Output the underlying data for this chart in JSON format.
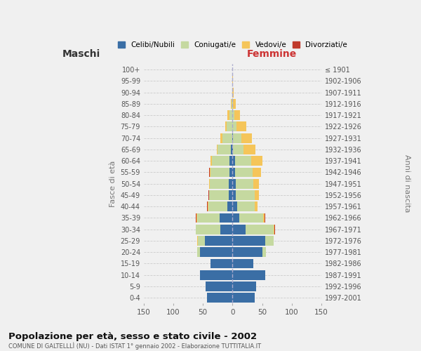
{
  "age_groups": [
    "0-4",
    "5-9",
    "10-14",
    "15-19",
    "20-24",
    "25-29",
    "30-34",
    "35-39",
    "40-44",
    "45-49",
    "50-54",
    "55-59",
    "60-64",
    "65-69",
    "70-74",
    "75-79",
    "80-84",
    "85-89",
    "90-94",
    "95-99",
    "100+"
  ],
  "birth_years": [
    "1997-2001",
    "1992-1996",
    "1987-1991",
    "1982-1986",
    "1977-1981",
    "1972-1976",
    "1967-1971",
    "1962-1966",
    "1957-1961",
    "1952-1956",
    "1947-1951",
    "1942-1946",
    "1937-1941",
    "1932-1936",
    "1927-1931",
    "1922-1926",
    "1917-1921",
    "1912-1916",
    "1907-1911",
    "1902-1906",
    "≤ 1901"
  ],
  "maschi": {
    "celibi": [
      43,
      46,
      55,
      37,
      55,
      47,
      20,
      22,
      9,
      6,
      6,
      5,
      5,
      3,
      1,
      1,
      0,
      0,
      0,
      0,
      0
    ],
    "coniugati": [
      0,
      0,
      0,
      0,
      5,
      12,
      42,
      38,
      32,
      33,
      32,
      32,
      30,
      22,
      16,
      9,
      5,
      2,
      1,
      0,
      0
    ],
    "vedovi": [
      0,
      0,
      0,
      0,
      0,
      1,
      0,
      1,
      1,
      1,
      1,
      1,
      2,
      2,
      3,
      2,
      4,
      1,
      0,
      0,
      0
    ],
    "divorziati": [
      0,
      0,
      0,
      0,
      0,
      0,
      0,
      1,
      1,
      1,
      1,
      1,
      0,
      0,
      0,
      0,
      0,
      0,
      0,
      0,
      0
    ]
  },
  "femmine": {
    "nubili": [
      38,
      40,
      55,
      35,
      50,
      55,
      22,
      12,
      8,
      5,
      5,
      4,
      4,
      1,
      1,
      0,
      0,
      0,
      0,
      0,
      0
    ],
    "coniugate": [
      0,
      0,
      0,
      0,
      6,
      14,
      48,
      40,
      30,
      32,
      30,
      30,
      28,
      18,
      14,
      7,
      3,
      1,
      0,
      0,
      0
    ],
    "vedove": [
      0,
      0,
      0,
      0,
      0,
      0,
      1,
      2,
      4,
      8,
      10,
      14,
      18,
      20,
      18,
      16,
      10,
      5,
      2,
      1,
      0
    ],
    "divorziate": [
      0,
      0,
      0,
      0,
      0,
      0,
      1,
      1,
      0,
      0,
      0,
      0,
      0,
      0,
      0,
      0,
      0,
      0,
      0,
      0,
      0
    ]
  },
  "colors": {
    "celibi_nubili": "#3a6ea5",
    "coniugati": "#c5d9a0",
    "vedovi": "#f5c55a",
    "divorziati": "#c0392b"
  },
  "title": "Popolazione per età, sesso e stato civile - 2002",
  "subtitle": "COMUNE DI GALTELLLÌ (NU) - Dati ISTAT 1° gennaio 2002 - Elaborazione TUTTITALIA.IT",
  "xlabel_left": "Maschi",
  "xlabel_right": "Femmine",
  "ylabel_left": "Fasce di età",
  "ylabel_right": "Anni di nascita",
  "xlim": 150,
  "legend_labels": [
    "Celibi/Nubili",
    "Coniugati/e",
    "Vedovi/e",
    "Divorziati/e"
  ],
  "background_color": "#f0f0f0",
  "grid_color": "#cccccc"
}
